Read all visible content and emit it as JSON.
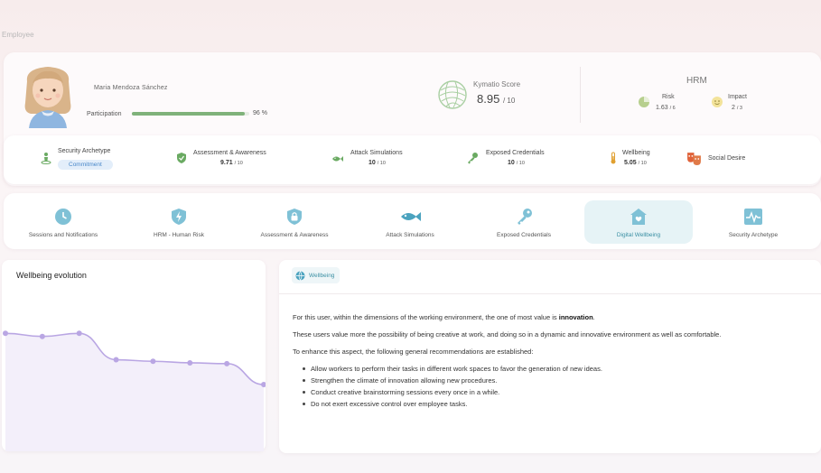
{
  "breadcrumb": "Employee",
  "profile": {
    "name": "Maria Mendoza Sánchez",
    "participation_label": "Participation",
    "participation_value": "96 %",
    "participation_fraction": 0.96
  },
  "kymatio": {
    "label": "Kymatio Score",
    "score": "8.95",
    "denominator": "/ 10"
  },
  "hrm": {
    "title": "HRM",
    "risk_label": "Risk",
    "risk_value": "1.63",
    "risk_den": "/ 6",
    "impact_label": "Impact",
    "impact_value": "2",
    "impact_den": "/ 3"
  },
  "stats": {
    "archetype_label": "Security Archetype",
    "archetype_badge": "Commitment",
    "assessment_label": "Assessment & Awareness",
    "assessment_value": "9.71",
    "assessment_den": "/ 10",
    "attack_label": "Attack Simulations",
    "attack_value": "10",
    "attack_den": "/ 10",
    "exposed_label": "Exposed Credentials",
    "exposed_value": "10",
    "exposed_den": "/ 10",
    "wellbeing_label": "Wellbeing",
    "wellbeing_value": "5.05",
    "wellbeing_den": "/ 10",
    "social_label": "Social Desire"
  },
  "tabs": [
    {
      "label": "Sessions and Notifications",
      "icon": "clock-icon"
    },
    {
      "label": "HRM - Human Risk",
      "icon": "shield-bolt-icon"
    },
    {
      "label": "Assessment & Awareness",
      "icon": "lock-shield-icon"
    },
    {
      "label": "Attack Simulations",
      "icon": "fish-icon"
    },
    {
      "label": "Exposed Credentials",
      "icon": "key-icon"
    },
    {
      "label": "Digital Wellbeing",
      "icon": "home-heart-icon"
    },
    {
      "label": "Security Archetype",
      "icon": "pulse-icon"
    }
  ],
  "active_tab": "Digital Wellbeing",
  "chart_title": "Wellbeing evolution",
  "chart_data": {
    "type": "area",
    "title": "Wellbeing evolution",
    "xlabel": "",
    "ylabel": "",
    "values": [
      7.6,
      7.4,
      7.6,
      5.9,
      5.8,
      5.7,
      5.65,
      4.3
    ],
    "ylim": [
      0,
      10
    ],
    "grid": false,
    "line_color": "#b9a6e3",
    "fill_color": "#f3effa"
  },
  "detail": {
    "pill_label": "Wellbeing",
    "para1_prefix": "For this user, within the dimensions of the working environment, the one of most value is ",
    "para1_bold": "innovation",
    "para1_suffix": ".",
    "para2": "These users value more the possibility of being creative at work, and doing so in a dynamic and innovative environment as well as comfortable.",
    "para3": "To enhance this aspect, the following general recommendations are established:",
    "recommendations": [
      "Allow workers to perform their tasks in different work spaces to favor the generation of new ideas.",
      "Strengthen the climate of innovation allowing new procedures.",
      "Conduct creative brainstorming sessions every once in a while.",
      "Do not exert excessive control over employee tasks."
    ]
  },
  "colors": {
    "accent": "#3a8fa3",
    "participation": "#7fb27a",
    "badge_bg": "#e3eefa"
  }
}
